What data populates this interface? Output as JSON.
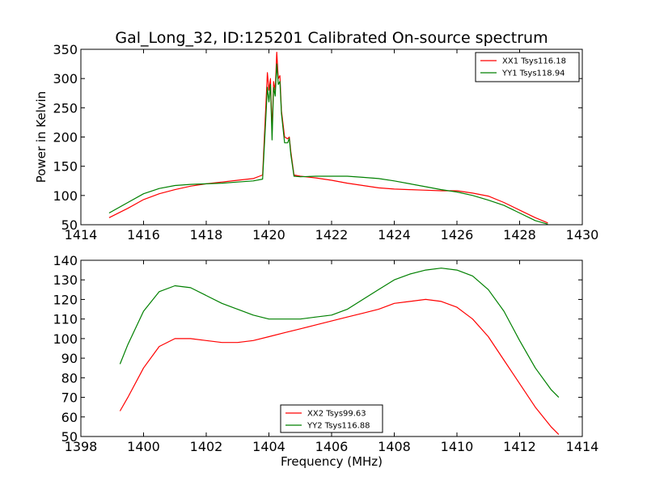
{
  "figure": {
    "title": "Gal_Long_32, ID:125201 Calibrated On-source spectrum"
  },
  "chart_data": [
    {
      "type": "line",
      "xlabel": "",
      "ylabel": "Power in Kelvin",
      "xlim": [
        1414,
        1430
      ],
      "ylim": [
        50,
        350
      ],
      "xticks": [
        "1414",
        "1416",
        "1418",
        "1420",
        "1422",
        "1424",
        "1426",
        "1428",
        "1430"
      ],
      "yticks": [
        "50",
        "100",
        "150",
        "200",
        "250",
        "300",
        "350"
      ],
      "legend_position": "top-right",
      "grid": false,
      "series": [
        {
          "name": "XX1 Tsys116.18",
          "color": "#ff0000",
          "x": [
            1414.9,
            1415.5,
            1416,
            1416.5,
            1417,
            1417.5,
            1418,
            1418.5,
            1419,
            1419.5,
            1419.8,
            1419.9,
            1419.95,
            1420.0,
            1420.05,
            1420.1,
            1420.15,
            1420.2,
            1420.25,
            1420.3,
            1420.35,
            1420.4,
            1420.5,
            1420.6,
            1420.65,
            1420.7,
            1420.8,
            1421,
            1421.5,
            1422,
            1422.5,
            1423,
            1423.5,
            1424,
            1424.5,
            1425,
            1425.5,
            1426,
            1426.5,
            1427,
            1427.5,
            1428,
            1428.5,
            1428.9
          ],
          "values": [
            62,
            78,
            93,
            103,
            110,
            116,
            120,
            123,
            126,
            129,
            135,
            250,
            310,
            280,
            300,
            210,
            295,
            280,
            345,
            300,
            305,
            245,
            200,
            197,
            200,
            175,
            135,
            133,
            130,
            126,
            121,
            117,
            113,
            111,
            110,
            109,
            108,
            108,
            104,
            99,
            88,
            75,
            62,
            53
          ]
        },
        {
          "name": "YY1 Tsys118.94",
          "color": "#008000",
          "x": [
            1414.9,
            1415.5,
            1416,
            1416.5,
            1417,
            1417.5,
            1418,
            1418.5,
            1419,
            1419.5,
            1419.8,
            1419.9,
            1419.95,
            1420.0,
            1420.05,
            1420.1,
            1420.15,
            1420.2,
            1420.25,
            1420.3,
            1420.35,
            1420.4,
            1420.5,
            1420.6,
            1420.65,
            1420.7,
            1420.8,
            1421,
            1421.5,
            1422,
            1422.5,
            1423,
            1423.5,
            1424,
            1424.5,
            1425,
            1425.5,
            1426,
            1426.5,
            1427,
            1427.5,
            1428,
            1428.5,
            1428.9
          ],
          "values": [
            70,
            88,
            103,
            112,
            117,
            119,
            120,
            121,
            123,
            125,
            128,
            230,
            285,
            260,
            290,
            195,
            285,
            270,
            325,
            290,
            295,
            240,
            190,
            190,
            198,
            170,
            133,
            132,
            133,
            133,
            133,
            131,
            129,
            125,
            120,
            115,
            110,
            106,
            100,
            92,
            83,
            70,
            57,
            51
          ]
        }
      ]
    },
    {
      "type": "line",
      "xlabel": "Frequency (MHz)",
      "ylabel": "",
      "xlim": [
        1398,
        1414
      ],
      "ylim": [
        50,
        140
      ],
      "xticks": [
        "1398",
        "1400",
        "1402",
        "1404",
        "1406",
        "1408",
        "1410",
        "1412",
        "1414"
      ],
      "yticks": [
        "50",
        "60",
        "70",
        "80",
        "90",
        "100",
        "110",
        "120",
        "130",
        "140"
      ],
      "legend_position": "bottom-center",
      "grid": false,
      "series": [
        {
          "name": "XX2 Tsys99.63",
          "color": "#ff0000",
          "x": [
            1399.25,
            1399.5,
            1400,
            1400.5,
            1401,
            1401.5,
            1402,
            1402.5,
            1403,
            1403.5,
            1404,
            1404.5,
            1405,
            1405.5,
            1406,
            1406.5,
            1407,
            1407.5,
            1408,
            1408.5,
            1409,
            1409.5,
            1410,
            1410.5,
            1411,
            1411.5,
            1412,
            1412.5,
            1413,
            1413.25
          ],
          "values": [
            63,
            70,
            85,
            96,
            100,
            100,
            99,
            98,
            98,
            99,
            101,
            103,
            105,
            107,
            109,
            111,
            113,
            115,
            118,
            119,
            120,
            119,
            116,
            110,
            101,
            89,
            77,
            65,
            55,
            51
          ]
        },
        {
          "name": "YY2 Tsys116.88",
          "color": "#008000",
          "x": [
            1399.25,
            1399.5,
            1400,
            1400.5,
            1401,
            1401.5,
            1402,
            1402.5,
            1403,
            1403.5,
            1404,
            1404.5,
            1405,
            1405.5,
            1406,
            1406.5,
            1407,
            1407.5,
            1408,
            1408.5,
            1409,
            1409.5,
            1410,
            1410.5,
            1411,
            1411.5,
            1412,
            1412.5,
            1413,
            1413.25
          ],
          "values": [
            87,
            97,
            114,
            124,
            127,
            126,
            122,
            118,
            115,
            112,
            110,
            110,
            110,
            111,
            112,
            115,
            120,
            125,
            130,
            133,
            135,
            136,
            135,
            132,
            125,
            114,
            99,
            85,
            74,
            70
          ]
        }
      ]
    }
  ]
}
